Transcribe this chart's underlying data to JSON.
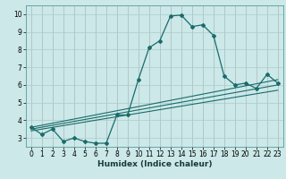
{
  "xlabel": "Humidex (Indice chaleur)",
  "bg_color": "#cce8e8",
  "grid_color": "#aacccc",
  "line_color": "#1a6b6b",
  "xlim": [
    -0.5,
    23.5
  ],
  "ylim": [
    2.5,
    10.5
  ],
  "xticks": [
    0,
    1,
    2,
    3,
    4,
    5,
    6,
    7,
    8,
    9,
    10,
    11,
    12,
    13,
    14,
    15,
    16,
    17,
    18,
    19,
    20,
    21,
    22,
    23
  ],
  "yticks": [
    3,
    4,
    5,
    6,
    7,
    8,
    9,
    10
  ],
  "line1_x": [
    0,
    1,
    2,
    3,
    4,
    5,
    6,
    7,
    8,
    9,
    10,
    11,
    12,
    13,
    14,
    15,
    16,
    17,
    18,
    19,
    20,
    21,
    22,
    23
  ],
  "line1_y": [
    3.6,
    3.2,
    3.5,
    2.8,
    3.0,
    2.8,
    2.7,
    2.7,
    4.3,
    4.3,
    6.3,
    8.1,
    8.5,
    9.9,
    9.95,
    9.3,
    9.4,
    8.8,
    6.5,
    6.0,
    6.1,
    5.8,
    6.6,
    6.1
  ],
  "line2_x": [
    0,
    23
  ],
  "line2_y": [
    3.6,
    6.3
  ],
  "line3_x": [
    0,
    23
  ],
  "line3_y": [
    3.5,
    6.0
  ],
  "line4_x": [
    0,
    23
  ],
  "line4_y": [
    3.4,
    5.7
  ],
  "tick_fontsize": 5.5,
  "xlabel_fontsize": 6.5
}
